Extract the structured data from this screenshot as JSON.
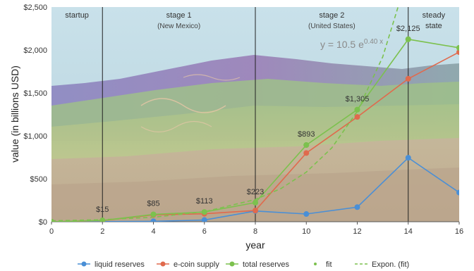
{
  "chart_data": {
    "type": "line",
    "xlabel": "year",
    "ylabel": "value (in billions USD)",
    "xlim": [
      0,
      16
    ],
    "ylim": [
      0,
      2500
    ],
    "xticks": [
      0,
      2,
      4,
      6,
      8,
      10,
      12,
      14,
      16
    ],
    "xtick_labels": [
      "0",
      "2",
      "4",
      "6",
      "8",
      "10",
      "12",
      "14",
      "16"
    ],
    "yticks": [
      0,
      500,
      1000,
      1500,
      2000,
      2500
    ],
    "ytick_labels": [
      "$0",
      "$500",
      "$1,000",
      "$1,500",
      "$2,000",
      "$2,500"
    ],
    "grid": false,
    "stages": [
      {
        "name": "startup",
        "sub": "",
        "x_from": 0,
        "x_to": 2
      },
      {
        "name": "stage 1",
        "sub": "(New Mexico)",
        "x_from": 2,
        "x_to": 8
      },
      {
        "name": "stage 2",
        "sub": "(United States)",
        "x_from": 8,
        "x_to": 14
      },
      {
        "name": "steady",
        "sub": "state",
        "x_from": 14,
        "x_to": 16
      }
    ],
    "stage_boundaries": [
      2,
      8,
      14
    ],
    "series": [
      {
        "name": "liquid reserves",
        "color": "#4a8fd6",
        "style": "line",
        "x": [
          0,
          2,
          4,
          6,
          8,
          10,
          12,
          14,
          16
        ],
        "y": [
          0,
          2,
          5,
          20,
          125,
          90,
          170,
          745,
          340
        ]
      },
      {
        "name": "e-coin supply",
        "color": "#e06a4d",
        "style": "line",
        "x": [
          0,
          2,
          4,
          6,
          8,
          10,
          12,
          14,
          16
        ],
        "y": [
          0,
          13,
          80,
          93,
          130,
          800,
          1220,
          1665,
          1975
        ]
      },
      {
        "name": "total reserves",
        "color": "#7cc14e",
        "style": "line",
        "x": [
          0,
          2,
          4,
          6,
          8,
          10,
          12,
          14,
          16
        ],
        "y": [
          0,
          15,
          85,
          113,
          223,
          893,
          1305,
          2125,
          2025
        ]
      },
      {
        "name": "fit",
        "color": "#7cc14e",
        "style": "points",
        "x": [
          0,
          2,
          4,
          6,
          8,
          10,
          12,
          14,
          16
        ],
        "y": [
          0,
          15,
          85,
          113,
          223,
          893,
          1305,
          2125,
          2025
        ]
      },
      {
        "name": "Expon. (fit)",
        "color": "#7cc14e",
        "style": "dashed",
        "x": [
          0,
          2,
          4,
          6,
          8,
          9,
          10,
          11,
          12,
          13,
          13.6
        ],
        "y": [
          10.5,
          23.4,
          52.2,
          116,
          259,
          385,
          578,
          860,
          1285,
          1920,
          2500
        ]
      }
    ],
    "data_labels": [
      {
        "x": 2,
        "y": 15,
        "text": "$15"
      },
      {
        "x": 4,
        "y": 85,
        "text": "$85"
      },
      {
        "x": 6,
        "y": 113,
        "text": "$113"
      },
      {
        "x": 8,
        "y": 223,
        "text": "$223"
      },
      {
        "x": 10,
        "y": 893,
        "text": "$893"
      },
      {
        "x": 12,
        "y": 1305,
        "text": "$1,305"
      },
      {
        "x": 14,
        "y": 2125,
        "text": "$2,125"
      }
    ],
    "equation": {
      "base": "y = 10.5 e",
      "exponent": "0.40 x"
    },
    "legend": {
      "position": "bottom",
      "items": [
        {
          "label": "liquid reserves",
          "color": "#4a8fd6",
          "marker": "line-dot"
        },
        {
          "label": "e-coin supply",
          "color": "#e06a4d",
          "marker": "line-dot"
        },
        {
          "label": "total reserves",
          "color": "#7cc14e",
          "marker": "line-dot"
        },
        {
          "label": "fit",
          "color": "#7cc14e",
          "marker": "dot"
        },
        {
          "label": "Expon. (fit)",
          "color": "#7cc14e",
          "marker": "dashed"
        }
      ]
    }
  }
}
